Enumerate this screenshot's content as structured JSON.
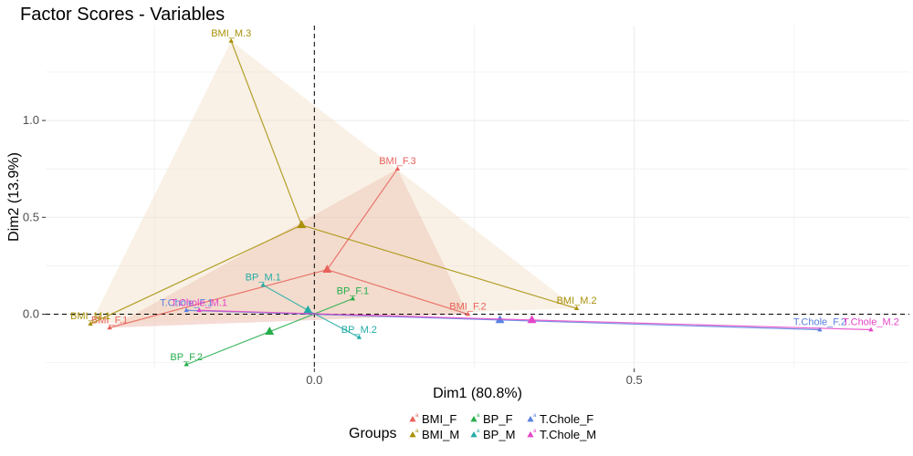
{
  "chart_data": {
    "type": "scatter",
    "title": "Factor Scores - Variables",
    "xlabel": "Dim1 (80.8%)",
    "ylabel": "Dim2 (13.9%)",
    "xlim": [
      -0.42,
      0.93
    ],
    "ylim": [
      -0.28,
      1.49
    ],
    "x_ticks": [
      {
        "value": 0.0,
        "label": "0.0"
      },
      {
        "value": 0.5,
        "label": "0.5"
      }
    ],
    "y_ticks": [
      {
        "value": 0.0,
        "label": "0.0"
      },
      {
        "value": 0.5,
        "label": "0.5"
      },
      {
        "value": 1.0,
        "label": "1.0"
      }
    ],
    "grid": true,
    "reference_lines": {
      "x": 0,
      "y": 0,
      "style": "dashed"
    },
    "legend": {
      "title": "Groups",
      "position": "bottom",
      "entries": [
        "BMI_F",
        "BMI_M",
        "BP_F",
        "BP_M",
        "T.Chole_F",
        "T.Chole_M"
      ]
    },
    "groups": [
      {
        "name": "BMI_F",
        "color": "#E8625B",
        "hull_fill": "#E8A898",
        "centroid": {
          "x": 0.02,
          "y": 0.23
        },
        "points": [
          {
            "label": "BMI_F.1",
            "x": -0.32,
            "y": -0.07
          },
          {
            "label": "BMI_F.2",
            "x": 0.24,
            "y": 0.0
          },
          {
            "label": "BMI_F.3",
            "x": 0.13,
            "y": 0.75
          }
        ]
      },
      {
        "name": "BMI_M",
        "color": "#A89008",
        "hull_fill": "#F0DCC0",
        "centroid": {
          "x": -0.02,
          "y": 0.46
        },
        "points": [
          {
            "label": "BMI_M.1",
            "x": -0.35,
            "y": -0.05
          },
          {
            "label": "BMI_M.2",
            "x": 0.41,
            "y": 0.03
          },
          {
            "label": "BMI_M.3",
            "x": -0.13,
            "y": 1.41
          }
        ]
      },
      {
        "name": "BP_F",
        "color": "#26AD4B",
        "hull_fill": null,
        "centroid": {
          "x": -0.07,
          "y": -0.09
        },
        "points": [
          {
            "label": "BP_F.1",
            "x": 0.06,
            "y": 0.08
          },
          {
            "label": "BP_F.2",
            "x": -0.2,
            "y": -0.26
          }
        ]
      },
      {
        "name": "BP_M",
        "color": "#22ACA6",
        "hull_fill": null,
        "centroid": {
          "x": -0.01,
          "y": 0.02
        },
        "points": [
          {
            "label": "BP_M.1",
            "x": -0.08,
            "y": 0.15
          },
          {
            "label": "BP_M.2",
            "x": 0.07,
            "y": -0.12
          }
        ]
      },
      {
        "name": "T.Chole_F",
        "color": "#5B80E0",
        "hull_fill": null,
        "centroid": {
          "x": 0.29,
          "y": -0.03
        },
        "points": [
          {
            "label": "T.Chole_F.1",
            "x": -0.2,
            "y": 0.02
          },
          {
            "label": "T.Chole_F.2",
            "x": 0.79,
            "y": -0.08
          }
        ]
      },
      {
        "name": "T.Chole_M",
        "color": "#E545C8",
        "hull_fill": null,
        "centroid": {
          "x": 0.34,
          "y": -0.03
        },
        "points": [
          {
            "label": "T.Chole_M.1",
            "x": -0.18,
            "y": 0.02
          },
          {
            "label": "T.Chole_M.2",
            "x": 0.87,
            "y": -0.08
          }
        ]
      }
    ]
  }
}
